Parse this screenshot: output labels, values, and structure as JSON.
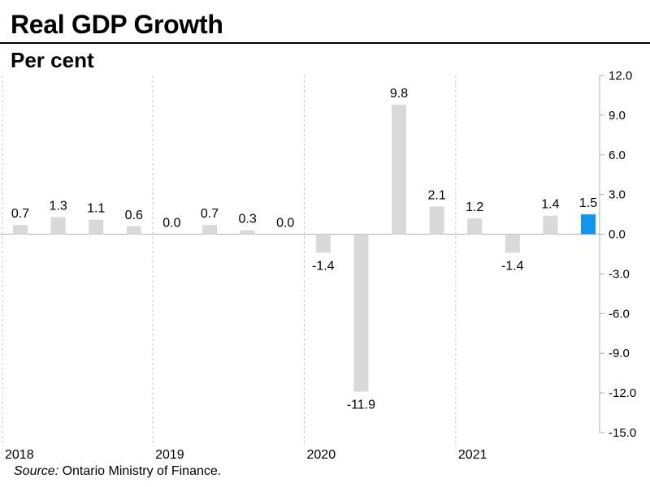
{
  "header": {
    "title": "Real GDP Growth",
    "subtitle": "Per cent"
  },
  "footer": {
    "source_label": "Source:",
    "source_text": " Ontario Ministry of Finance."
  },
  "colors": {
    "bar": "#d9d9d9",
    "highlight": "#0f96f0"
  },
  "chart_data": {
    "type": "bar",
    "title": "Real GDP Growth",
    "ylabel": "Per cent",
    "xlabel": "",
    "ylim": [
      -15.0,
      12.0
    ],
    "yticks": [
      "12.0",
      "9.0",
      "6.0",
      "3.0",
      "0.0",
      "-3.0",
      "-6.0",
      "-9.0",
      "-12.0",
      "-15.0"
    ],
    "ytick_values": [
      12,
      9,
      6,
      3,
      0,
      -3,
      -6,
      -9,
      -12,
      -15
    ],
    "categories": [
      "2018Q1",
      "2018Q2",
      "2018Q3",
      "2018Q4",
      "2019Q1",
      "2019Q2",
      "2019Q3",
      "2019Q4",
      "2020Q1",
      "2020Q2",
      "2020Q3",
      "2020Q4",
      "2021Q1",
      "2021Q2",
      "2021Q3",
      "2021Q4"
    ],
    "values": [
      0.7,
      1.3,
      1.1,
      0.6,
      0.0,
      0.7,
      0.3,
      0.0,
      -1.4,
      -11.9,
      9.8,
      2.1,
      1.2,
      -1.4,
      1.4,
      1.5
    ],
    "labels": [
      "0.7",
      "1.3",
      "1.1",
      "0.6",
      "0.0",
      "0.7",
      "0.3",
      "0.0",
      "-1.4",
      "-11.9",
      "9.8",
      "2.1",
      "1.2",
      "-1.4",
      "1.4",
      "1.5"
    ],
    "highlight_index": 15,
    "year_labels": [
      "2018",
      "2019",
      "2020",
      "2021"
    ],
    "grid": "vertical dashed year separators"
  }
}
